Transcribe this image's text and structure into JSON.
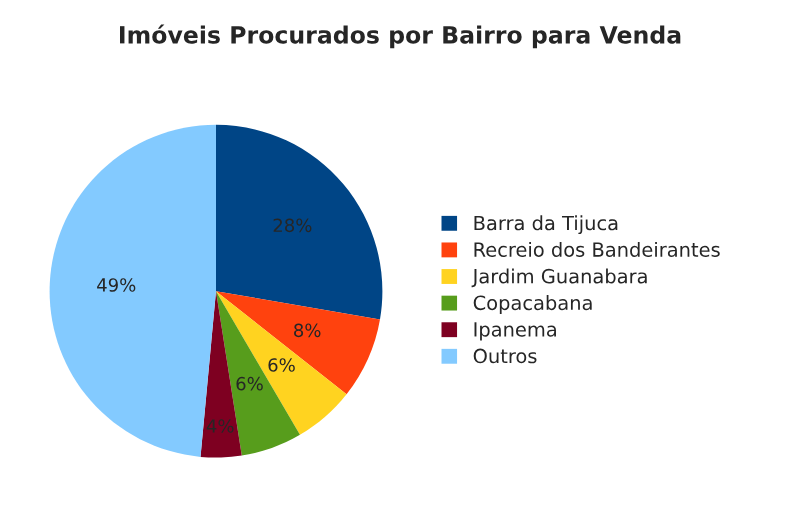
{
  "chart_data": {
    "type": "pie",
    "title": "Imóveis Procurados por Bairro para Venda",
    "categories": [
      "Barra da Tijuca",
      "Recreio dos Bandeirantes",
      "Jardim Guanabara",
      "Copacabana",
      "Ipanema",
      "Outros"
    ],
    "values": [
      28,
      8,
      6,
      6,
      4,
      49
    ],
    "colors": [
      "#004586",
      "#ff420e",
      "#ffd320",
      "#579d1c",
      "#7e0021",
      "#83caff"
    ],
    "value_labels": [
      "28%",
      "8%",
      "6%",
      "6%",
      "4%",
      "49%"
    ],
    "legend": "right"
  }
}
